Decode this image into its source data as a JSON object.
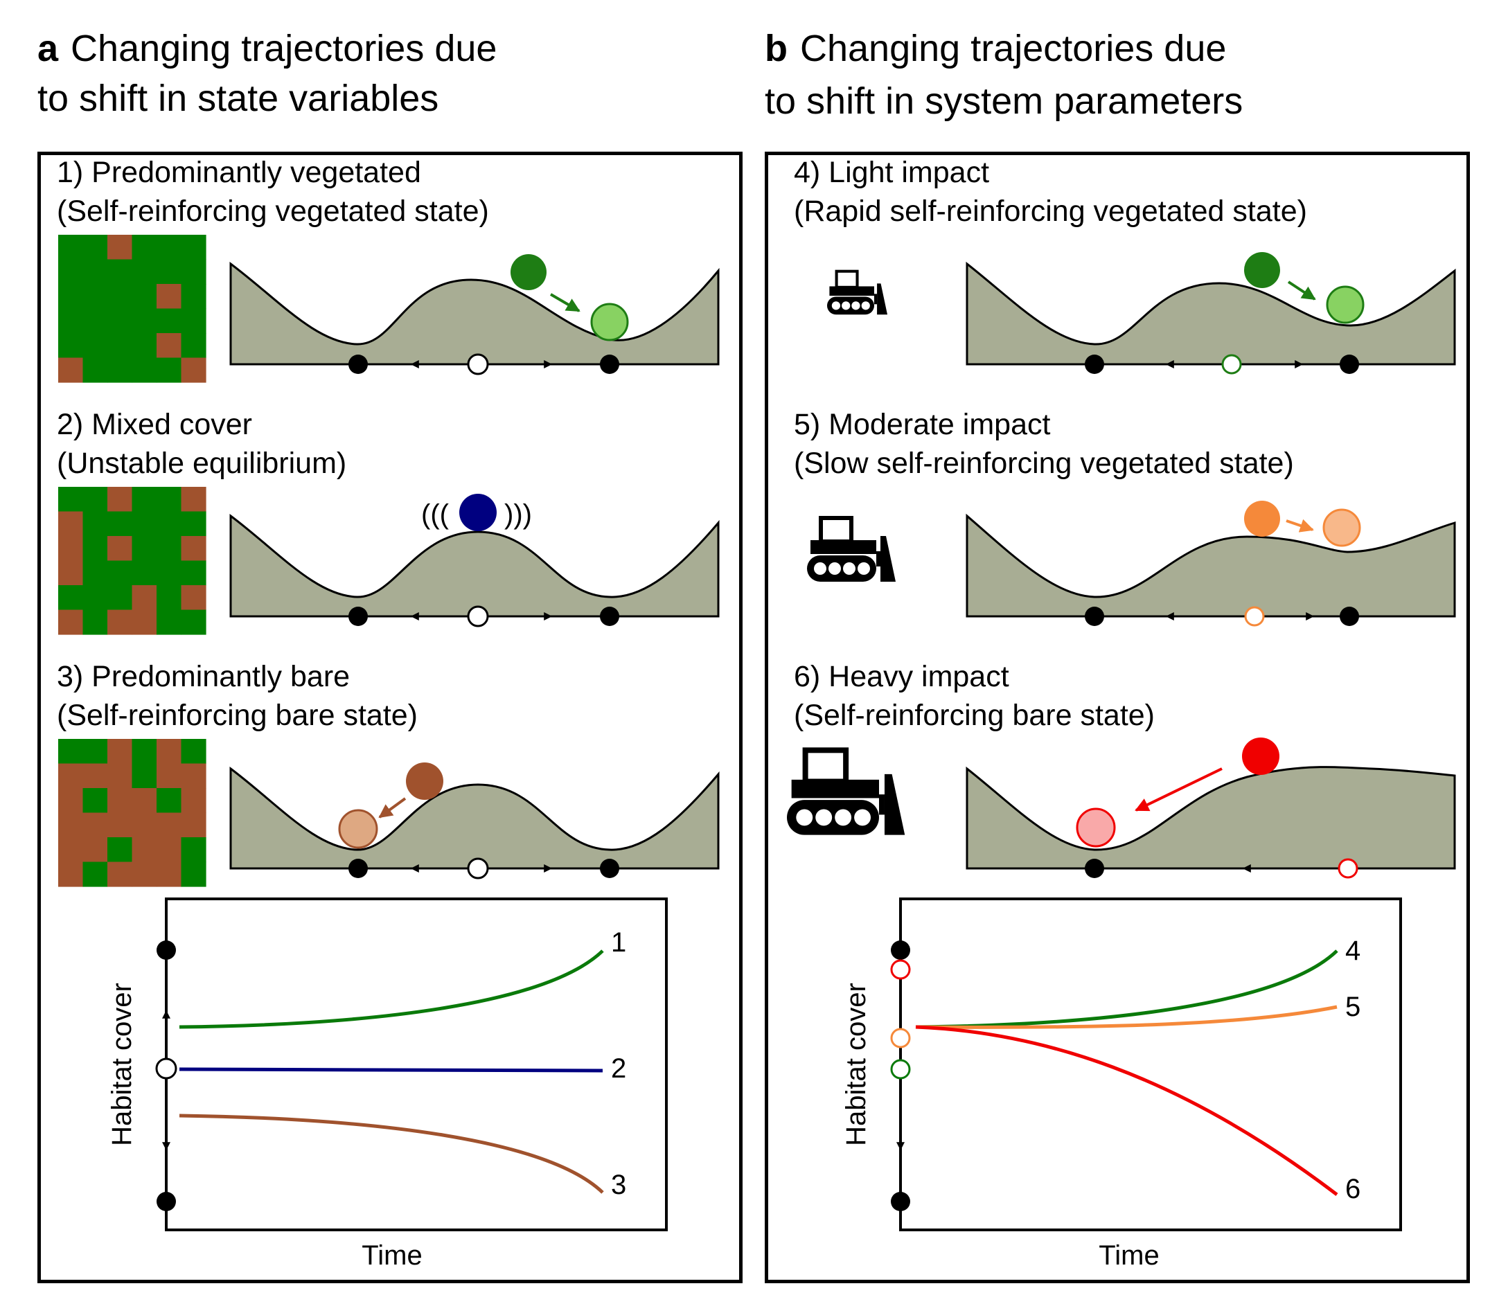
{
  "panel_a": {
    "letter": "a",
    "title_line1": "Changing trajectories due",
    "title_line2": "to shift in state variables",
    "scenarios": [
      {
        "line1": "1) Predominantly vegetated",
        "line2": "(Self-reinforcing vegetated state)"
      },
      {
        "line1": "2) Mixed cover",
        "line2": "(Unstable equilibrium)"
      },
      {
        "line1": "3) Predominantly bare",
        "line2": "(Self-reinforcing bare state)"
      }
    ],
    "vibration_left": "(((",
    "vibration_right": ")))",
    "plot": {
      "ylabel": "Habitat cover",
      "xlabel": "Time",
      "curve_labels": [
        "1",
        "2",
        "3"
      ]
    }
  },
  "panel_b": {
    "letter": "b",
    "title_line1": "Changing trajectories due",
    "title_line2": "to shift in system parameters",
    "scenarios": [
      {
        "line1": "4) Light impact",
        "line2": "(Rapid self-reinforcing vegetated state)"
      },
      {
        "line1": "5) Moderate impact",
        "line2": "(Slow self-reinforcing vegetated state)"
      },
      {
        "line1": "6) Heavy impact",
        "line2": "(Self-reinforcing bare state)"
      }
    ],
    "plot": {
      "ylabel": "Habitat cover",
      "xlabel": "Time",
      "curve_labels": [
        "4",
        "5",
        "6"
      ]
    }
  },
  "colors": {
    "vegetation": "#008000",
    "bare_soil": "#A0522D",
    "landscape": "#A8AD94",
    "mixed_ball": "#000080",
    "green_ball": "#1E7D14",
    "green_ball_light": "#88D262",
    "brown_ball": "#A0522D",
    "brown_ball_light": "#DEA882",
    "orange_ball": "#F5893A",
    "orange_ball_light": "#F8B88A",
    "red_ball": "#F00000",
    "red_ball_light": "#F9A9A9",
    "curve_green": "#0A7A0A",
    "curve_navy": "#000080",
    "curve_brown": "#A0522D",
    "curve_orange": "#F5893A",
    "curve_red": "#F00000"
  },
  "icons": [
    "bulldozer-icon",
    "arrow-icon"
  ]
}
